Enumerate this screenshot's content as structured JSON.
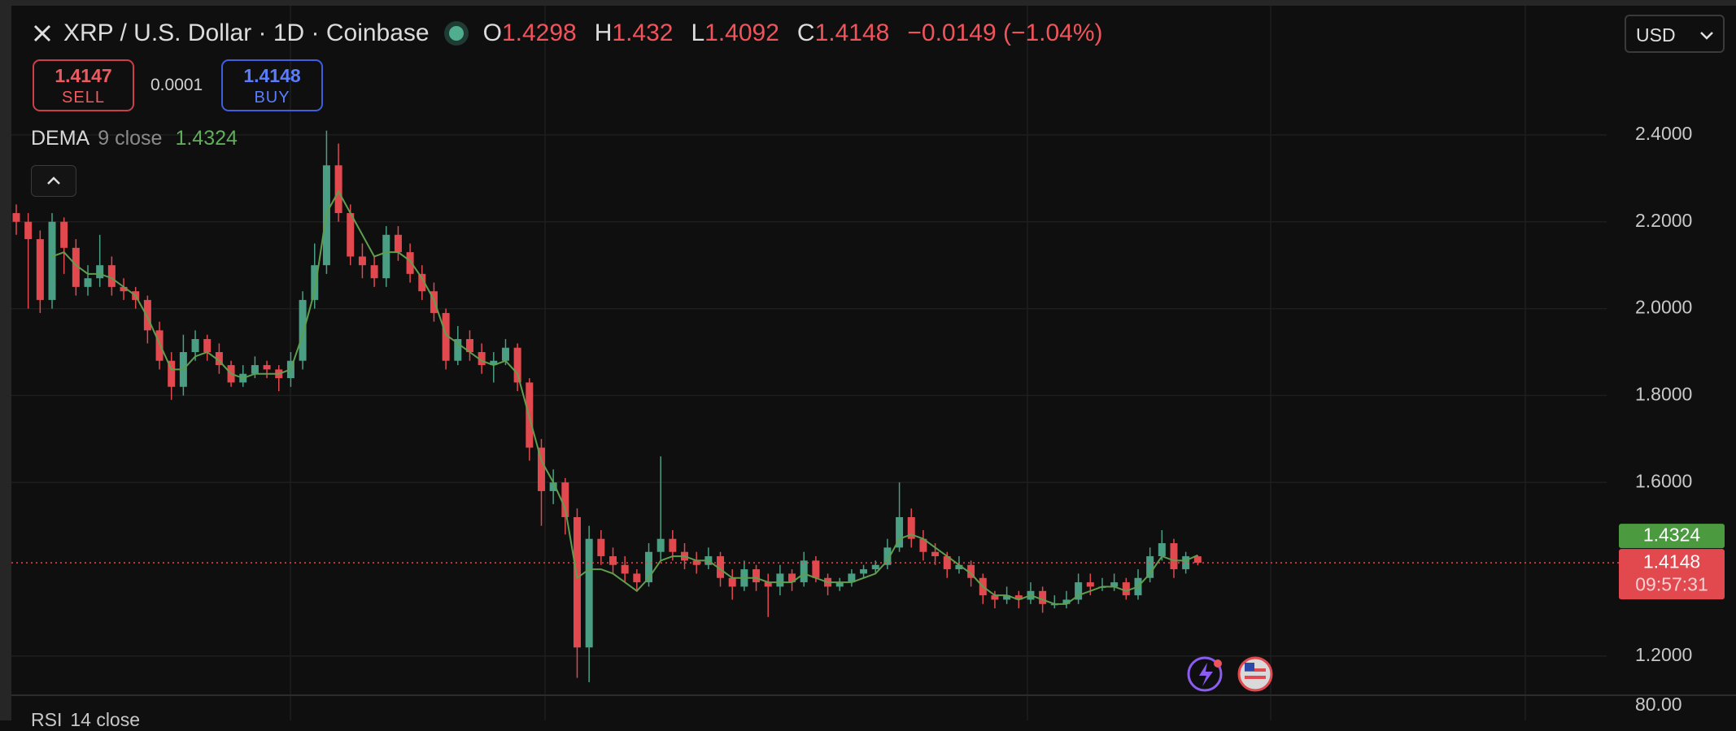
{
  "header": {
    "symbol": "XRP / U.S. Dollar · 1D · Coinbase",
    "open_label": "O",
    "high_label": "H",
    "low_label": "L",
    "close_label": "C",
    "change": "−0.0149 (−1.04%)",
    "currency": "USD"
  },
  "trade": {
    "sell": 1.4147,
    "sell_label": "SELL",
    "spread": 0.0001,
    "buy": 1.4148,
    "buy_label": "BUY"
  },
  "chart_data": {
    "type": "candlestick",
    "up_color": "#4a9e83",
    "down_color": "#e2494f",
    "candles": [
      [
        2.22,
        2.24,
        2.17,
        2.2
      ],
      [
        2.2,
        2.22,
        2.0,
        2.16
      ],
      [
        2.16,
        2.18,
        1.99,
        2.02
      ],
      [
        2.02,
        2.22,
        2.0,
        2.2
      ],
      [
        2.2,
        2.21,
        2.08,
        2.14
      ],
      [
        2.14,
        2.16,
        2.03,
        2.05
      ],
      [
        2.05,
        2.1,
        2.03,
        2.07
      ],
      [
        2.07,
        2.17,
        2.05,
        2.1
      ],
      [
        2.1,
        2.12,
        2.03,
        2.05
      ],
      [
        2.05,
        2.07,
        2.02,
        2.04
      ],
      [
        2.04,
        2.05,
        2.0,
        2.02
      ],
      [
        2.02,
        2.03,
        1.92,
        1.95
      ],
      [
        1.95,
        1.97,
        1.86,
        1.88
      ],
      [
        1.88,
        1.9,
        1.79,
        1.82
      ],
      [
        1.82,
        1.94,
        1.8,
        1.9
      ],
      [
        1.9,
        1.95,
        1.88,
        1.93
      ],
      [
        1.93,
        1.94,
        1.88,
        1.9
      ],
      [
        1.9,
        1.92,
        1.85,
        1.87
      ],
      [
        1.87,
        1.88,
        1.82,
        1.83
      ],
      [
        1.83,
        1.87,
        1.82,
        1.85
      ],
      [
        1.85,
        1.89,
        1.84,
        1.87
      ],
      [
        1.87,
        1.88,
        1.84,
        1.86
      ],
      [
        1.86,
        1.87,
        1.81,
        1.84
      ],
      [
        1.84,
        1.9,
        1.82,
        1.88
      ],
      [
        1.88,
        2.04,
        1.86,
        2.02
      ],
      [
        2.02,
        2.15,
        2.0,
        2.1
      ],
      [
        2.1,
        2.41,
        2.08,
        2.33
      ],
      [
        2.33,
        2.38,
        2.2,
        2.22
      ],
      [
        2.22,
        2.24,
        2.1,
        2.12
      ],
      [
        2.12,
        2.15,
        2.07,
        2.1
      ],
      [
        2.1,
        2.12,
        2.05,
        2.07
      ],
      [
        2.07,
        2.19,
        2.05,
        2.17
      ],
      [
        2.17,
        2.19,
        2.11,
        2.13
      ],
      [
        2.13,
        2.15,
        2.06,
        2.08
      ],
      [
        2.08,
        2.1,
        2.02,
        2.04
      ],
      [
        2.04,
        2.06,
        1.97,
        1.99
      ],
      [
        1.99,
        2.0,
        1.86,
        1.88
      ],
      [
        1.88,
        1.96,
        1.87,
        1.93
      ],
      [
        1.93,
        1.95,
        1.88,
        1.9
      ],
      [
        1.9,
        1.92,
        1.85,
        1.87
      ],
      [
        1.87,
        1.9,
        1.83,
        1.88
      ],
      [
        1.88,
        1.93,
        1.87,
        1.91
      ],
      [
        1.91,
        1.92,
        1.81,
        1.83
      ],
      [
        1.83,
        1.84,
        1.65,
        1.68
      ],
      [
        1.68,
        1.7,
        1.5,
        1.58
      ],
      [
        1.58,
        1.63,
        1.55,
        1.6
      ],
      [
        1.6,
        1.61,
        1.48,
        1.52
      ],
      [
        1.52,
        1.54,
        1.15,
        1.22
      ],
      [
        1.22,
        1.5,
        1.14,
        1.47
      ],
      [
        1.47,
        1.49,
        1.41,
        1.43
      ],
      [
        1.43,
        1.45,
        1.39,
        1.41
      ],
      [
        1.41,
        1.43,
        1.37,
        1.39
      ],
      [
        1.39,
        1.4,
        1.35,
        1.37
      ],
      [
        1.37,
        1.46,
        1.36,
        1.44
      ],
      [
        1.44,
        1.66,
        1.42,
        1.47
      ],
      [
        1.47,
        1.49,
        1.42,
        1.44
      ],
      [
        1.44,
        1.46,
        1.4,
        1.42
      ],
      [
        1.42,
        1.44,
        1.39,
        1.41
      ],
      [
        1.41,
        1.45,
        1.4,
        1.43
      ],
      [
        1.43,
        1.44,
        1.36,
        1.38
      ],
      [
        1.38,
        1.4,
        1.33,
        1.36
      ],
      [
        1.36,
        1.42,
        1.35,
        1.4
      ],
      [
        1.4,
        1.41,
        1.35,
        1.37
      ],
      [
        1.37,
        1.39,
        1.29,
        1.36
      ],
      [
        1.36,
        1.41,
        1.34,
        1.39
      ],
      [
        1.39,
        1.4,
        1.35,
        1.37
      ],
      [
        1.37,
        1.44,
        1.36,
        1.42
      ],
      [
        1.42,
        1.43,
        1.37,
        1.38
      ],
      [
        1.38,
        1.39,
        1.34,
        1.36
      ],
      [
        1.36,
        1.38,
        1.35,
        1.37
      ],
      [
        1.37,
        1.4,
        1.36,
        1.39
      ],
      [
        1.39,
        1.41,
        1.38,
        1.4
      ],
      [
        1.4,
        1.42,
        1.39,
        1.41
      ],
      [
        1.41,
        1.47,
        1.4,
        1.45
      ],
      [
        1.45,
        1.6,
        1.44,
        1.52
      ],
      [
        1.52,
        1.54,
        1.45,
        1.47
      ],
      [
        1.47,
        1.49,
        1.42,
        1.44
      ],
      [
        1.44,
        1.46,
        1.41,
        1.43
      ],
      [
        1.43,
        1.44,
        1.38,
        1.4
      ],
      [
        1.4,
        1.43,
        1.39,
        1.41
      ],
      [
        1.41,
        1.42,
        1.36,
        1.38
      ],
      [
        1.38,
        1.39,
        1.32,
        1.34
      ],
      [
        1.34,
        1.35,
        1.31,
        1.33
      ],
      [
        1.33,
        1.36,
        1.32,
        1.34
      ],
      [
        1.34,
        1.35,
        1.31,
        1.33
      ],
      [
        1.33,
        1.37,
        1.32,
        1.35
      ],
      [
        1.35,
        1.36,
        1.3,
        1.32
      ],
      [
        1.32,
        1.34,
        1.31,
        1.32
      ],
      [
        1.32,
        1.35,
        1.31,
        1.33
      ],
      [
        1.33,
        1.39,
        1.32,
        1.37
      ],
      [
        1.37,
        1.39,
        1.34,
        1.36
      ],
      [
        1.36,
        1.38,
        1.35,
        1.36
      ],
      [
        1.36,
        1.39,
        1.35,
        1.37
      ],
      [
        1.37,
        1.38,
        1.33,
        1.34
      ],
      [
        1.34,
        1.4,
        1.33,
        1.38
      ],
      [
        1.38,
        1.45,
        1.37,
        1.43
      ],
      [
        1.43,
        1.49,
        1.42,
        1.46
      ],
      [
        1.46,
        1.47,
        1.38,
        1.4
      ],
      [
        1.4,
        1.44,
        1.39,
        1.43
      ],
      [
        1.4298,
        1.432,
        1.4092,
        1.4148
      ]
    ],
    "indicator": {
      "name": "DEMA",
      "params": "9 close",
      "color": "#5f9e4e",
      "values": [
        null,
        null,
        null,
        2.12,
        2.13,
        2.1,
        2.08,
        2.08,
        2.07,
        2.05,
        2.03,
        1.98,
        1.92,
        1.86,
        1.86,
        1.89,
        1.9,
        1.88,
        1.85,
        1.84,
        1.85,
        1.85,
        1.85,
        1.86,
        1.94,
        2.04,
        2.22,
        2.27,
        2.22,
        2.17,
        2.12,
        2.13,
        2.13,
        2.11,
        2.07,
        2.02,
        1.94,
        1.92,
        1.9,
        1.88,
        1.87,
        1.88,
        1.85,
        1.75,
        1.65,
        1.6,
        1.54,
        1.38,
        1.4,
        1.4,
        1.39,
        1.37,
        1.35,
        1.38,
        1.42,
        1.43,
        1.43,
        1.42,
        1.42,
        1.4,
        1.38,
        1.38,
        1.38,
        1.37,
        1.37,
        1.37,
        1.39,
        1.38,
        1.37,
        1.37,
        1.37,
        1.38,
        1.39,
        1.42,
        1.47,
        1.48,
        1.47,
        1.45,
        1.43,
        1.41,
        1.39,
        1.36,
        1.34,
        1.34,
        1.33,
        1.34,
        1.33,
        1.32,
        1.32,
        1.34,
        1.35,
        1.36,
        1.36,
        1.35,
        1.36,
        1.39,
        1.43,
        1.42,
        1.42,
        1.4324
      ]
    },
    "ylim": [
      1.11,
      2.69
    ],
    "yticks": [
      {
        "value": 1.2,
        "label": "1.2000"
      },
      {
        "value": 1.6,
        "label": "1.6000"
      },
      {
        "value": 1.8,
        "label": "1.8000"
      },
      {
        "value": 2.0,
        "label": "2.0000"
      },
      {
        "value": 2.2,
        "label": "2.2000"
      },
      {
        "value": 2.4,
        "label": "2.4000"
      }
    ],
    "grid": true,
    "countdown": "09:57:31"
  },
  "rsi": {
    "name": "RSI",
    "params": "14 close",
    "tick": "80.00"
  }
}
